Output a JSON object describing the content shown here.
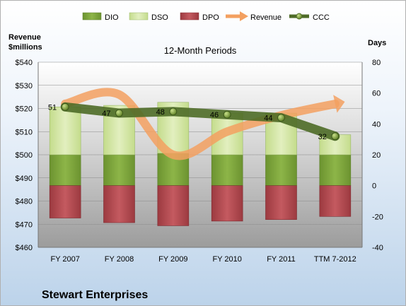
{
  "company": "Stewart Enterprises",
  "chart_data": {
    "type": "bar",
    "title": "12-Month Periods",
    "categories": [
      "FY 2007",
      "FY 2008",
      "FY 2009",
      "FY 2010",
      "FY 2011",
      "TTM 7-2012"
    ],
    "y_left": {
      "label_line1": "Revenue",
      "label_line2": "$millions",
      "ticks": [
        460,
        470,
        480,
        490,
        500,
        510,
        520,
        530,
        540
      ],
      "tick_prefix": "$",
      "range": [
        460,
        540
      ]
    },
    "y_right": {
      "label": "Days",
      "ticks": [
        -40,
        -20,
        0,
        20,
        40,
        60,
        80
      ],
      "range": [
        -40,
        80
      ]
    },
    "legend": {
      "position": "top",
      "items": [
        {
          "key": "dio",
          "label": "DIO",
          "marker": "box"
        },
        {
          "key": "dso",
          "label": "DSO",
          "marker": "box"
        },
        {
          "key": "dpo",
          "label": "DPO",
          "marker": "box"
        },
        {
          "key": "revenue",
          "label": "Revenue",
          "marker": "arrow"
        },
        {
          "key": "ccc",
          "label": "CCC",
          "marker": "line-dot"
        }
      ]
    },
    "series": [
      {
        "key": "dio",
        "name": "DIO",
        "axis": "right",
        "values": [
          20,
          20,
          21,
          20,
          20,
          20
        ],
        "color": "#7fa63a"
      },
      {
        "key": "dso",
        "name": "DSO",
        "axis": "right",
        "values": [
          31,
          32,
          33,
          27,
          27,
          13
        ],
        "color": "#d3e6a4"
      },
      {
        "key": "dpo",
        "name": "DPO",
        "axis": "right",
        "values": [
          21,
          24,
          26,
          23,
          22,
          20
        ],
        "color": "#b3484e"
      },
      {
        "key": "revenue",
        "name": "Revenue",
        "axis": "left",
        "values": [
          522,
          526,
          500,
          510,
          517,
          522
        ],
        "color": "#f3a060"
      },
      {
        "key": "ccc",
        "name": "CCC",
        "axis": "right",
        "values": [
          51,
          47,
          48,
          46,
          44,
          32
        ],
        "color": "#4e6b27"
      }
    ],
    "ccc_labels": [
      "51",
      "47",
      "48",
      "46",
      "44",
      "32"
    ]
  }
}
